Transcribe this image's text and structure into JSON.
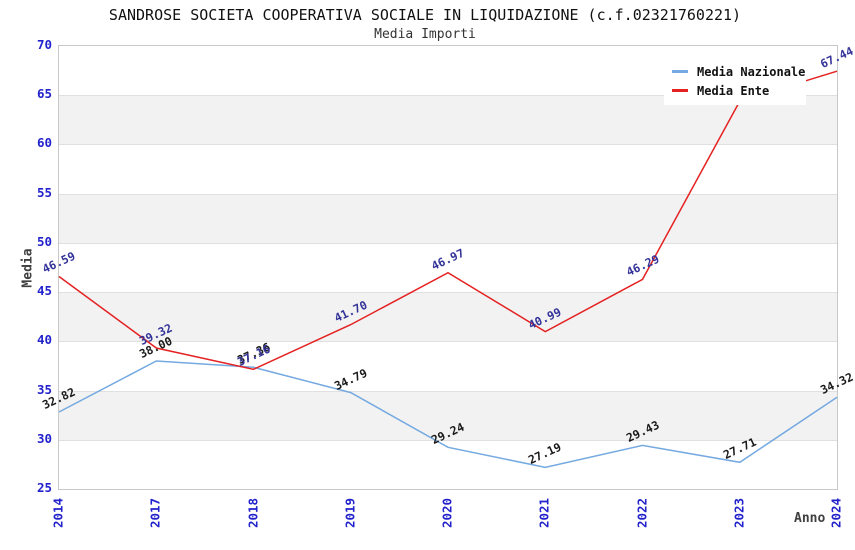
{
  "header": {
    "title": "SANDROSE SOCIETA COOPERATIVA SOCIALE IN LIQUIDAZIONE (c.f.02321760221)",
    "subtitle": "Media Importi"
  },
  "axes": {
    "y_title": "Media",
    "x_title": "Anno"
  },
  "colors": {
    "tick_label_blue": "#2222cc",
    "axis_title_gray": "#404040",
    "band_gray": "#f2f2f2",
    "gridline": "#e0e0e0",
    "plot_border": "#c8c8c8",
    "nazionale_line": "#74a9e1",
    "ente_line": "#e42222",
    "nazionale_point_label": "#1a1a1a",
    "ente_point_label": "#333399"
  },
  "chart_data": {
    "type": "line",
    "title": "SANDROSE SOCIETA COOPERATIVA SOCIALE IN LIQUIDAZIONE (c.f.02321760221)",
    "subtitle": "Media Importi",
    "xlabel": "Anno",
    "ylabel": "Media",
    "categories": [
      "2014",
      "2017",
      "2018",
      "2019",
      "2020",
      "2021",
      "2022",
      "2023",
      "2024"
    ],
    "series": [
      {
        "name": "Media Nazionale",
        "color": "#74a9e1",
        "label_color": "#1a1a1a",
        "values": [
          32.82,
          38.0,
          37.36,
          34.79,
          29.24,
          27.19,
          29.43,
          27.71,
          34.32
        ]
      },
      {
        "name": "Media Ente",
        "color": "#e42222",
        "label_color": "#333399",
        "values": [
          46.59,
          39.32,
          37.16,
          41.7,
          46.97,
          40.99,
          46.29,
          64.4,
          67.44
        ]
      }
    ],
    "ylim": [
      25,
      70
    ],
    "y_ticks": [
      70,
      65,
      60,
      55,
      50,
      45,
      40,
      35,
      30,
      25
    ],
    "grid": "horizontal gridlines with alternating gray bands every 5 units",
    "legend_position": "top-right",
    "point_labels_shown": true,
    "note_2023_media_ente_label": "partially hidden behind legend, value estimated from line position"
  }
}
